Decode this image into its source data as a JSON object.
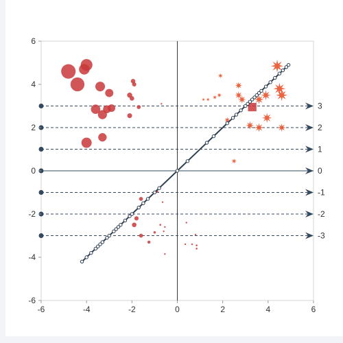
{
  "chart_data": {
    "type": "scatter",
    "title": "",
    "xlabel": "",
    "ylabel": "",
    "xlim": [
      -6,
      6
    ],
    "ylim": [
      -6,
      6
    ],
    "x_ticks": [
      -6,
      -4,
      -2,
      0,
      2,
      4,
      6
    ],
    "y_ticks": [
      -6,
      -4,
      -2,
      0,
      2,
      4,
      6
    ],
    "grid": "box with center axes",
    "colors": {
      "circle_series": "#c9383b",
      "star_series": "#e8542e",
      "line": "#2c3e50",
      "markline": "#34495e",
      "axis_text": "#333333"
    },
    "series": [
      {
        "symbol": "circle",
        "points": [
          {
            "x": -4.8,
            "y": 4.6,
            "size": 4.8
          },
          {
            "x": -4.4,
            "y": 4.0,
            "size": 4.6
          },
          {
            "x": -4.0,
            "y": 4.9,
            "size": 3.9
          },
          {
            "x": -4.1,
            "y": 4.7,
            "size": 3.5
          },
          {
            "x": -3.4,
            "y": 3.9,
            "size": 3.2
          },
          {
            "x": -3.6,
            "y": 2.85,
            "size": 3.1
          },
          {
            "x": -3.3,
            "y": 2.6,
            "size": 3.0
          },
          {
            "x": -3.0,
            "y": 3.6,
            "size": 2.7
          },
          {
            "x": -2.9,
            "y": 2.9,
            "size": 2.5
          },
          {
            "x": -3.1,
            "y": 2.85,
            "size": 2.6
          },
          {
            "x": -4.0,
            "y": 1.3,
            "size": 3.4
          },
          {
            "x": -3.3,
            "y": 1.55,
            "size": 2.8
          },
          {
            "x": -2.1,
            "y": 3.5,
            "size": 1.7
          },
          {
            "x": -2.0,
            "y": 3.35,
            "size": 1.5
          },
          {
            "x": -1.95,
            "y": 4.15,
            "size": 1.5
          },
          {
            "x": -1.9,
            "y": 4.0,
            "size": 1.4
          },
          {
            "x": -2.1,
            "y": 2.55,
            "size": 1.6
          },
          {
            "x": -1.7,
            "y": 2.95,
            "size": 1.3
          },
          {
            "x": -0.7,
            "y": 3.1,
            "size": 0.5
          },
          {
            "x": -0.9,
            "y": -0.95,
            "size": 0.9
          },
          {
            "x": -1.6,
            "y": -1.3,
            "size": 1.3
          },
          {
            "x": -0.65,
            "y": -1.45,
            "size": 0.4
          },
          {
            "x": -1.8,
            "y": -2.2,
            "size": 1.4
          },
          {
            "x": -1.9,
            "y": -2.5,
            "size": 1.5
          },
          {
            "x": -0.75,
            "y": -2.5,
            "size": 0.6
          },
          {
            "x": -0.55,
            "y": -2.6,
            "size": 0.4
          },
          {
            "x": -0.6,
            "y": -2.8,
            "size": 0.5
          },
          {
            "x": -1.0,
            "y": -2.85,
            "size": 0.8
          },
          {
            "x": -1.6,
            "y": -3.0,
            "size": 1.3
          },
          {
            "x": -1.25,
            "y": -3.3,
            "size": 1.0
          },
          {
            "x": -0.55,
            "y": -3.85,
            "size": 0.3
          },
          {
            "x": 0.4,
            "y": -2.4,
            "size": 0.3
          },
          {
            "x": 0.8,
            "y": -2.95,
            "size": 0.5
          },
          {
            "x": 0.65,
            "y": -3.4,
            "size": 0.5
          },
          {
            "x": 0.85,
            "y": -3.45,
            "size": 0.6
          },
          {
            "x": 0.85,
            "y": -3.6,
            "size": 0.6
          },
          {
            "x": 0.35,
            "y": -3.4,
            "size": 0.3
          }
        ]
      },
      {
        "symbol": "star",
        "points": [
          {
            "x": 4.4,
            "y": 4.85,
            "size": 3.8
          },
          {
            "x": 4.5,
            "y": 3.8,
            "size": 3.6
          },
          {
            "x": 4.6,
            "y": 3.5,
            "size": 3.5
          },
          {
            "x": 3.9,
            "y": 3.5,
            "size": 3.0
          },
          {
            "x": 3.6,
            "y": 3.3,
            "size": 2.8
          },
          {
            "x": 2.7,
            "y": 3.95,
            "size": 2.2
          },
          {
            "x": 2.7,
            "y": 3.5,
            "size": 2.3
          },
          {
            "x": 2.85,
            "y": 3.3,
            "size": 2.4
          },
          {
            "x": 1.9,
            "y": 4.4,
            "size": 1.5
          },
          {
            "x": 1.85,
            "y": 3.5,
            "size": 1.4
          },
          {
            "x": 1.65,
            "y": 3.4,
            "size": 1.3
          },
          {
            "x": 1.35,
            "y": 3.3,
            "size": 1.1
          },
          {
            "x": 1.15,
            "y": 3.3,
            "size": 1.0
          },
          {
            "x": 3.95,
            "y": 2.45,
            "size": 3.0
          },
          {
            "x": 3.6,
            "y": 2.0,
            "size": 2.7
          },
          {
            "x": 3.2,
            "y": 2.1,
            "size": 2.5
          },
          {
            "x": 2.2,
            "y": 2.35,
            "size": 1.8
          },
          {
            "x": 4.6,
            "y": 2.0,
            "size": 2.5
          },
          {
            "x": 2.5,
            "y": 0.45,
            "size": 1.6
          }
        ]
      },
      {
        "symbol": "square",
        "points": [
          {
            "x": 3.3,
            "y": 2.95,
            "size": 2.8
          }
        ]
      }
    ],
    "line": {
      "x": [
        -4.2,
        -4.0,
        -3.8,
        -3.6,
        -3.5,
        -3.4,
        -3.3,
        -3.1,
        -3.0,
        -2.8,
        -2.7,
        -2.6,
        -2.5,
        -2.3,
        -2.1,
        -2.0,
        -1.7,
        -1.5,
        -1.3,
        -1.0,
        -0.8,
        0.0,
        0.45,
        1.3,
        1.6,
        2.2,
        2.45,
        2.6,
        2.8,
        3.0,
        3.1,
        3.2,
        3.3,
        3.4,
        3.5,
        3.6,
        3.7,
        3.9,
        4.1,
        4.3,
        4.5,
        4.65,
        4.8,
        4.9
      ],
      "y": [
        -4.2,
        -4.0,
        -3.8,
        -3.6,
        -3.5,
        -3.4,
        -3.3,
        -3.1,
        -3.0,
        -2.8,
        -2.7,
        -2.6,
        -2.5,
        -2.3,
        -2.1,
        -2.0,
        -1.7,
        -1.5,
        -1.3,
        -1.0,
        -0.8,
        0.0,
        0.45,
        1.3,
        1.6,
        2.2,
        2.45,
        2.6,
        2.8,
        3.0,
        3.1,
        3.2,
        3.3,
        3.4,
        3.5,
        3.6,
        3.7,
        3.9,
        4.1,
        4.3,
        4.5,
        4.65,
        4.8,
        4.9
      ]
    },
    "marklines": [
      {
        "y": 3,
        "label": "3"
      },
      {
        "y": 2,
        "label": "2"
      },
      {
        "y": 1,
        "label": "1"
      },
      {
        "y": 0,
        "label": "0"
      },
      {
        "y": -1,
        "label": "-1"
      },
      {
        "y": -2,
        "label": "-2"
      },
      {
        "y": -3,
        "label": "-3"
      }
    ]
  }
}
